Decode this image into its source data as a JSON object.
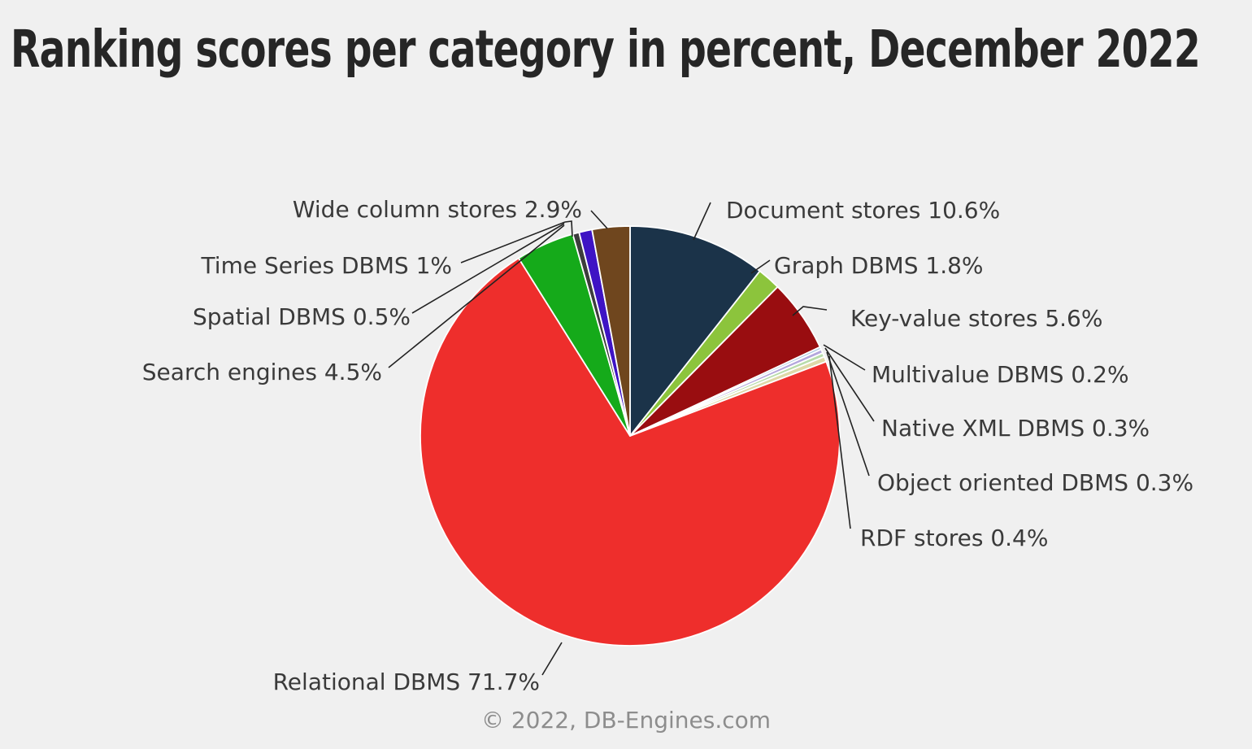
{
  "title": "Ranking scores per category in percent, December 2022",
  "footer": "© 2022, DB-Engines.com",
  "colors": {
    "background": "#f0f0f0",
    "title_text": "#262626",
    "label_text": "#3a3a3a",
    "footer_text": "#8d8d8d",
    "callout_line": "#222222",
    "slice_border": "#ffffff"
  },
  "chart_data": {
    "type": "pie",
    "title": "Ranking scores per category in percent, December 2022",
    "legend_position": "callout-labels-around-pie",
    "start_angle_deg": 0,
    "direction": "clockwise",
    "slices": [
      {
        "label": "Document stores",
        "value": 10.6,
        "display": "Document stores 10.6%",
        "color": "#1b3349"
      },
      {
        "label": "Graph DBMS",
        "value": 1.8,
        "display": "Graph DBMS 1.8%",
        "color": "#8cc43c"
      },
      {
        "label": "Key-value stores",
        "value": 5.6,
        "display": "Key-value stores 5.6%",
        "color": "#990d10"
      },
      {
        "label": "Multivalue DBMS",
        "value": 0.2,
        "display": "Multivalue DBMS 0.2%",
        "color": "#a9c6e0"
      },
      {
        "label": "Native XML DBMS",
        "value": 0.3,
        "display": "Native XML DBMS 0.3%",
        "color": "#b3a6dc"
      },
      {
        "label": "Object oriented DBMS",
        "value": 0.3,
        "display": "Object oriented DBMS 0.3%",
        "color": "#b8dcaa"
      },
      {
        "label": "RDF stores",
        "value": 0.4,
        "display": "RDF stores 0.4%",
        "color": "#ded9a8"
      },
      {
        "label": "Relational DBMS",
        "value": 71.7,
        "display": "Relational DBMS 71.7%",
        "color": "#ee2e2c"
      },
      {
        "label": "Search engines",
        "value": 4.5,
        "display": "Search engines 4.5%",
        "color": "#15aa1a"
      },
      {
        "label": "Spatial DBMS",
        "value": 0.5,
        "display": "Spatial DBMS 0.5%",
        "color": "#3d3d3d"
      },
      {
        "label": "Time Series DBMS",
        "value": 1,
        "display": "Time Series DBMS 1%",
        "color": "#3e13c4"
      },
      {
        "label": "Wide column stores",
        "value": 2.9,
        "display": "Wide column stores 2.9%",
        "color": "#6f461e"
      }
    ]
  }
}
